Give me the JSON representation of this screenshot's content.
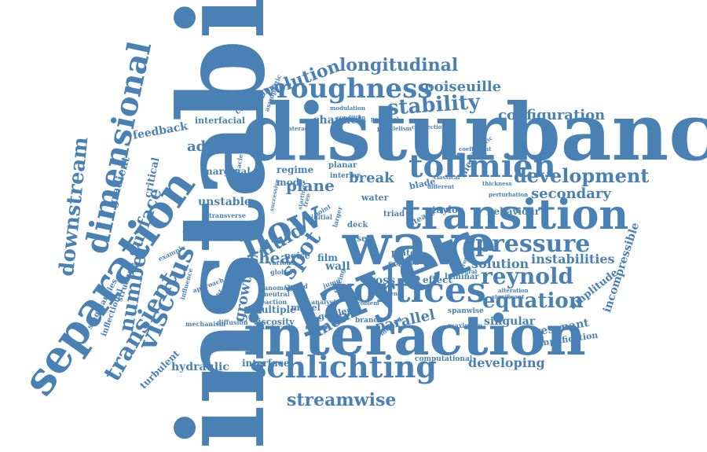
{
  "colors": {
    "word": "#4a81b5",
    "background": "#ffffff"
  },
  "words": [
    {
      "text": "instability",
      "weight": 100
    },
    {
      "text": "disturbance",
      "weight": 95
    },
    {
      "text": "layer",
      "weight": 90
    },
    {
      "text": "wave",
      "weight": 85
    },
    {
      "text": "interaction",
      "weight": 80
    },
    {
      "text": "transition",
      "weight": 78
    },
    {
      "text": "separation",
      "weight": 75
    },
    {
      "text": "flow",
      "weight": 72
    },
    {
      "text": "vortices",
      "weight": 65
    },
    {
      "text": "schlichting",
      "weight": 60
    },
    {
      "text": "dimensional",
      "weight": 55
    },
    {
      "text": "tollmien",
      "weight": 52
    },
    {
      "text": "roughness",
      "weight": 50
    },
    {
      "text": "viscous",
      "weight": 48
    },
    {
      "text": "pressure",
      "weight": 46
    },
    {
      "text": "reynold",
      "weight": 44
    },
    {
      "text": "equation",
      "weight": 42
    },
    {
      "text": "downstream",
      "weight": 40
    },
    {
      "text": "streamwise",
      "weight": 40
    },
    {
      "text": "transient",
      "weight": 38
    },
    {
      "text": "stability",
      "weight": 38
    },
    {
      "text": "number",
      "weight": 36
    },
    {
      "text": "development",
      "weight": 36
    },
    {
      "text": "longitudinal",
      "weight": 34
    },
    {
      "text": "evolution",
      "weight": 33
    },
    {
      "text": "surface",
      "weight": 32
    },
    {
      "text": "spot",
      "weight": 32
    },
    {
      "text": "fluid",
      "weight": 30
    },
    {
      "text": "secondary",
      "weight": 28
    },
    {
      "text": "configuration",
      "weight": 28
    },
    {
      "text": "poiseuille",
      "weight": 26
    },
    {
      "text": "solution",
      "weight": 26
    },
    {
      "text": "instabilities",
      "weight": 24
    },
    {
      "text": "developing",
      "weight": 24
    },
    {
      "text": "adverse",
      "weight": 24
    },
    {
      "text": "growth",
      "weight": 24
    },
    {
      "text": "linear",
      "weight": 24
    },
    {
      "text": "shear",
      "weight": 22
    },
    {
      "text": "plane",
      "weight": 22
    },
    {
      "text": "break",
      "weight": 22
    },
    {
      "text": "parallel",
      "weight": 22
    },
    {
      "text": "oblique",
      "weight": 20
    },
    {
      "text": "unstable",
      "weight": 18
    },
    {
      "text": "channel",
      "weight": 18
    },
    {
      "text": "feedback",
      "weight": 18
    },
    {
      "text": "gradient",
      "weight": 18
    },
    {
      "text": "critical",
      "weight": 18
    },
    {
      "text": "hydraulic",
      "weight": 18
    },
    {
      "text": "interface",
      "weight": 16
    },
    {
      "text": "resonant",
      "weight": 16
    },
    {
      "text": "singular",
      "weight": 16
    },
    {
      "text": "amplitude",
      "weight": 16
    },
    {
      "text": "incompressible",
      "weight": 16
    },
    {
      "text": "behaviour",
      "weight": 16
    },
    {
      "text": "taylor",
      "weight": 14
    },
    {
      "text": "marginal",
      "weight": 14
    },
    {
      "text": "turbulent",
      "weight": 14
    },
    {
      "text": "effect",
      "weight": 14
    },
    {
      "text": "cross",
      "weight": 14
    },
    {
      "text": "regime",
      "weight": 14
    },
    {
      "text": "mode",
      "weight": 14
    },
    {
      "text": "multiple",
      "weight": 14
    },
    {
      "text": "wall",
      "weight": 14
    },
    {
      "text": "film",
      "weight": 12
    },
    {
      "text": "interfacial",
      "weight": 12
    },
    {
      "text": "theory",
      "weight": 12
    },
    {
      "text": "concerning",
      "weight": 12
    },
    {
      "text": "inflectional",
      "weight": 12
    },
    {
      "text": "structure",
      "weight": 12
    },
    {
      "text": "singularities",
      "weight": 12
    },
    {
      "text": "amplification",
      "weight": 12
    },
    {
      "text": "gortler",
      "weight": 12
    },
    {
      "text": "viscosity",
      "weight": 12
    },
    {
      "text": "noise",
      "weight": 12
    },
    {
      "text": "model",
      "weight": 12
    },
    {
      "text": "water",
      "weight": 12
    },
    {
      "text": "plate",
      "weight": 12
    },
    {
      "text": "scale",
      "weight": 12
    },
    {
      "text": "laminar",
      "weight": 12
    },
    {
      "text": "case",
      "weight": 12
    },
    {
      "text": "deck",
      "weight": 12
    },
    {
      "text": "triad",
      "weight": 12
    },
    {
      "text": "steady",
      "weight": 12
    },
    {
      "text": "planar",
      "weight": 12
    },
    {
      "text": "interior",
      "weight": 12
    },
    {
      "text": "blade",
      "weight": 12
    },
    {
      "text": "computational",
      "weight": 10
    },
    {
      "text": "branch",
      "weight": 10
    },
    {
      "text": "spanwise",
      "weight": 10
    },
    {
      "text": "reaction",
      "weight": 10
    },
    {
      "text": "induced",
      "weight": 10
    },
    {
      "text": "diffusion",
      "weight": 10
    },
    {
      "text": "mechanism",
      "weight": 10
    },
    {
      "text": "example",
      "weight": 10
    },
    {
      "text": "influence",
      "weight": 10
    },
    {
      "text": "nonlocal",
      "weight": 10
    },
    {
      "text": "approach",
      "weight": 10
    },
    {
      "text": "asymptotic",
      "weight": 10
    },
    {
      "text": "obstacle",
      "weight": 10
    },
    {
      "text": "transverse",
      "weight": 10
    },
    {
      "text": "point",
      "weight": 10
    },
    {
      "text": "free",
      "weight": 10
    },
    {
      "text": "jump",
      "weight": 10
    },
    {
      "text": "initial",
      "weight": 10
    },
    {
      "text": "larger",
      "weight": 10
    },
    {
      "text": "region",
      "weight": 10
    },
    {
      "text": "forcing",
      "weight": 10
    },
    {
      "text": "coated",
      "weight": 10
    },
    {
      "text": "global",
      "weight": 10
    },
    {
      "text": "various",
      "weight": 10
    },
    {
      "text": "neutral",
      "weight": 10
    },
    {
      "text": "anomaly",
      "weight": 10
    },
    {
      "text": "analysis",
      "weight": 10
    },
    {
      "text": "moving",
      "weight": 10
    },
    {
      "text": "maximum",
      "weight": 10
    },
    {
      "text": "significant",
      "weight": 10
    },
    {
      "text": "alteration",
      "weight": 10
    },
    {
      "text": "perturbation",
      "weight": 10
    },
    {
      "text": "thickness",
      "weight": 10
    },
    {
      "text": "classical",
      "weight": 10
    },
    {
      "text": "different",
      "weight": 10
    },
    {
      "text": "coefficient",
      "weight": 10
    },
    {
      "text": "modulation",
      "weight": 10
    },
    {
      "text": "condition",
      "weight": 10
    },
    {
      "text": "interactive",
      "weight": 10
    },
    {
      "text": "parallelism",
      "weight": 10
    },
    {
      "text": "connection",
      "weight": 10
    },
    {
      "text": "potential",
      "weight": 10
    },
    {
      "text": "successive",
      "weight": 10
    },
    {
      "text": "starting",
      "weight": 10
    },
    {
      "text": "sequence",
      "weight": 10
    },
    {
      "text": "problem",
      "weight": 10
    },
    {
      "text": "integral",
      "weight": 10
    },
    {
      "text": "properties",
      "weight": 10
    },
    {
      "text": "symmetric",
      "weight": 10
    }
  ]
}
